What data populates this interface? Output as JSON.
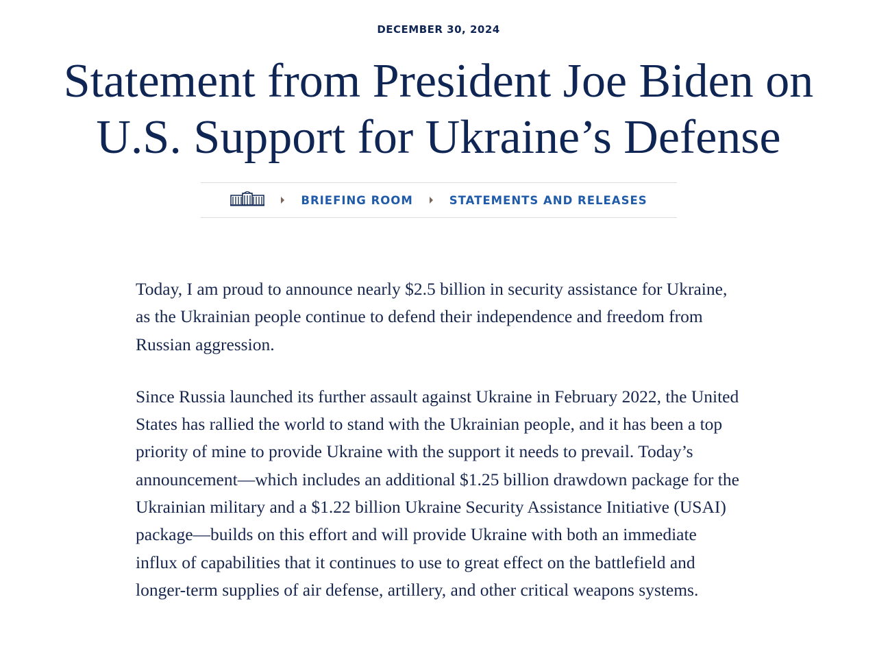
{
  "date": "DECEMBER 30, 2024",
  "title": "Statement from President Joe Biden on U.S. Support for Ukraine’s Defense",
  "breadcrumb": {
    "home_icon": "white-house-icon",
    "items": [
      "BRIEFING ROOM",
      "STATEMENTS AND RELEASES"
    ]
  },
  "body": {
    "paragraphs": [
      "Today, I am proud to announce nearly $2.5 billion in security assistance for Ukraine, as the Ukrainian people continue to defend their independence and freedom from Russian aggression.",
      "Since Russia launched its further assault against Ukraine in February 2022, the United States has rallied the world to stand with the Ukrainian people, and it has been a top priority of mine to provide Ukraine with the support it needs to prevail. Today’s announcement—which includes an additional $1.25 billion drawdown package for the Ukrainian military and a $1.22 billion Ukraine Security Assistance Initiative (USAI) package—builds on this effort and will provide Ukraine with both an immediate influx of capabilities that it continues to use to great effect on the battlefield and longer-term supplies of air defense, artillery, and other critical weapons systems."
    ]
  },
  "colors": {
    "navy": "#0f2553",
    "link": "#1f5ba8",
    "caret": "#7a665a"
  }
}
